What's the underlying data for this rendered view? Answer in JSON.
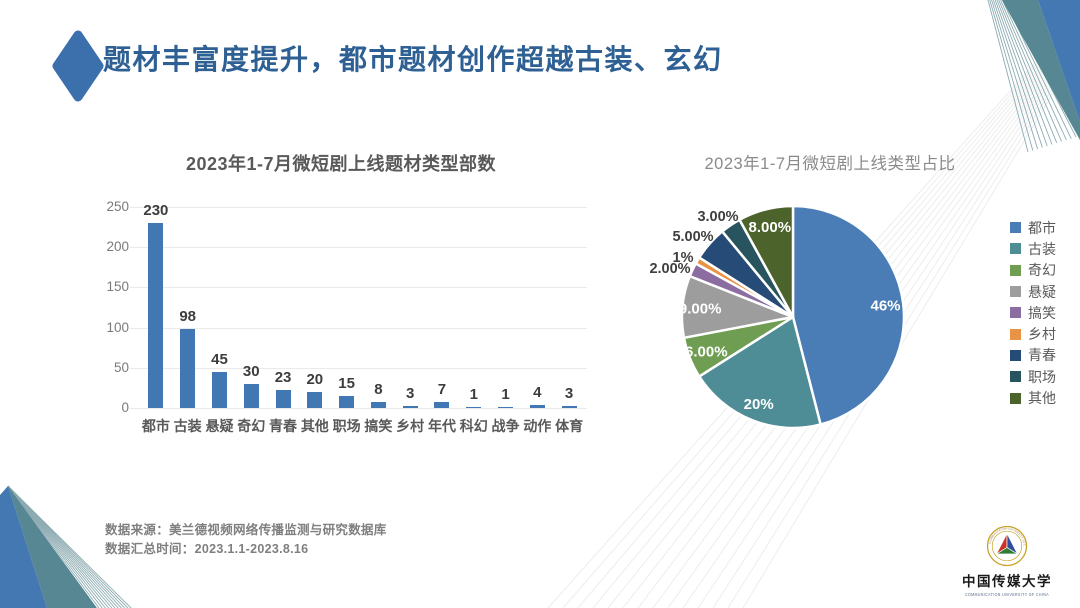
{
  "slide": {
    "title": "题材丰富度提升，都市题材创作超越古装、玄幻",
    "source_line1": "数据来源：美兰德视频网络传播监测与研究数据库",
    "source_line2": "数据汇总时间：2023.1.1-2023.8.16",
    "logo": {
      "cn_name": "中国传媒大学",
      "en_name": "COMMUNICATION UNIVERSITY OF CHINA"
    }
  },
  "colors": {
    "accent_blue": "#3B70AC",
    "title_text": "#2E6094",
    "bar": "#4177B2",
    "decor_blue": "#4478B2",
    "decor_slate": "#578793",
    "decor_line": "#8CABB1",
    "band_line": "#ededed"
  },
  "chart_data": [
    {
      "type": "bar",
      "title": "2023年1-7月微短剧上线题材类型部数",
      "categories": [
        "都市",
        "古装",
        "悬疑",
        "奇幻",
        "青春",
        "其他",
        "职场",
        "搞笑",
        "乡村",
        "年代",
        "科幻",
        "战争",
        "动作",
        "体育"
      ],
      "values": [
        230,
        98,
        45,
        30,
        23,
        20,
        15,
        8,
        3,
        7,
        1,
        1,
        4,
        3
      ],
      "xlabel": "",
      "ylabel": "",
      "ylim": [
        0,
        250
      ],
      "y_ticks": [
        0,
        50,
        100,
        150,
        200,
        250
      ],
      "grid": true,
      "bar_color": "#4177B2",
      "legend_position": "none"
    },
    {
      "type": "pie",
      "title": "2023年1-7月微短剧上线类型占比",
      "start_angle_deg": 0,
      "direction": "clockwise",
      "legend_position": "right",
      "slices": [
        {
          "name": "都市",
          "value": 46,
          "label": "46%",
          "color": "#4A7DB5",
          "label_inside": true
        },
        {
          "name": "古装",
          "value": 20,
          "label": "20%",
          "color": "#4E8C96",
          "label_inside": true
        },
        {
          "name": "奇幻",
          "value": 6,
          "label": "6.00%",
          "color": "#6F9E53",
          "label_inside": true
        },
        {
          "name": "悬疑",
          "value": 9,
          "label": "9.00%",
          "color": "#9D9D9D",
          "label_inside": true
        },
        {
          "name": "搞笑",
          "value": 2,
          "label": "2.00%",
          "color": "#8B6DA1",
          "label_inside": false
        },
        {
          "name": "乡村",
          "value": 1,
          "label": "1%",
          "color": "#E89346",
          "label_inside": false
        },
        {
          "name": "青春",
          "value": 5,
          "label": "5.00%",
          "color": "#274B77",
          "label_inside": false
        },
        {
          "name": "职场",
          "value": 3,
          "label": "3.00%",
          "color": "#27545E",
          "label_inside": false
        },
        {
          "name": "其他",
          "value": 8,
          "label": "8.00%",
          "color": "#4C632B",
          "label_inside": true
        }
      ]
    }
  ]
}
